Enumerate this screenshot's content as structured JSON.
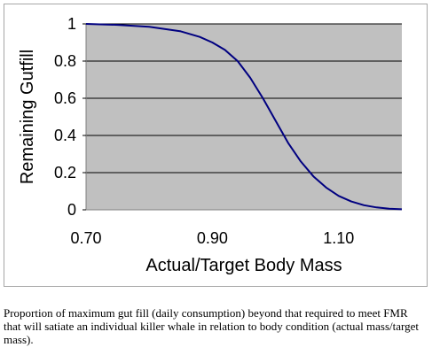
{
  "chart_data": {
    "type": "line",
    "xlabel": "Actual/Target Body Mass",
    "ylabel": "Remaining Gutfill",
    "xlim": [
      0.7,
      1.2
    ],
    "ylim": [
      0,
      1
    ],
    "x_ticks": [
      "0.70",
      "0.90",
      "1.10"
    ],
    "y_ticks": [
      "0",
      "0.2",
      "0.4",
      "0.6",
      "0.8",
      "1"
    ],
    "grid": "horizontal",
    "background": "#c0c0c0",
    "line_color": "#000080",
    "series": [
      {
        "x": [
          0.7,
          0.75,
          0.8,
          0.85,
          0.88,
          0.9,
          0.92,
          0.94,
          0.96,
          0.98,
          1.0,
          1.02,
          1.04,
          1.06,
          1.08,
          1.1,
          1.12,
          1.14,
          1.16,
          1.18,
          1.2
        ],
        "y": [
          1.0,
          0.995,
          0.985,
          0.96,
          0.93,
          0.9,
          0.86,
          0.8,
          0.71,
          0.6,
          0.48,
          0.36,
          0.26,
          0.18,
          0.12,
          0.075,
          0.045,
          0.025,
          0.013,
          0.006,
          0.003
        ]
      }
    ]
  },
  "caption": "Proportion of maximum gut fill (daily consumption) beyond that required to meet FMR that will satiate an individual killer whale in relation to body condition (actual mass/target mass)."
}
